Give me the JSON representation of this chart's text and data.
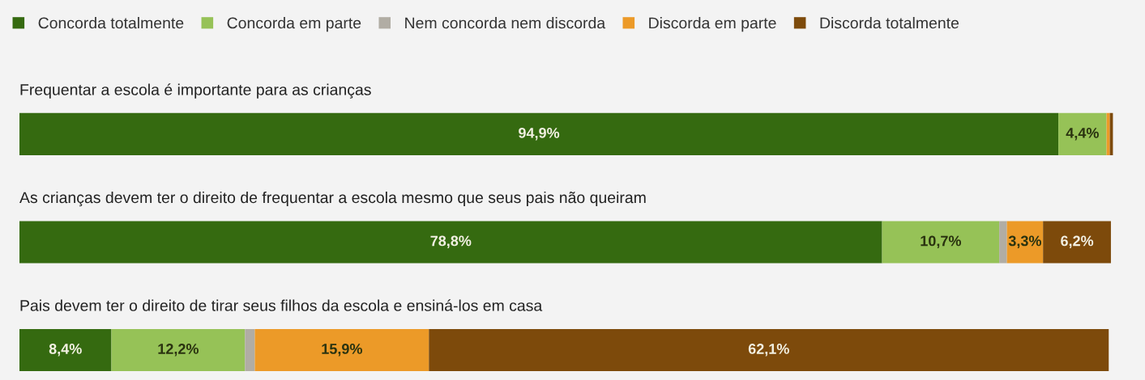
{
  "chart_data": {
    "type": "bar",
    "orientation": "horizontal",
    "stacked": true,
    "tick_labels": "y",
    "legend": "top left",
    "categories": [
      "Frequentar a escola é importante para as crianças",
      "As crianças devem ter o direito de frequentar a escola mesmo que seus pais não queiram",
      "Pais devem ter o direito de tirar seus filhos da escola e ensiná-los em casa"
    ],
    "series": [
      {
        "name": "Concorda totalmente",
        "color": "#356a10",
        "values": [
          94.9,
          78.8,
          8.4
        ],
        "value_labels": [
          "94,9%",
          "78,8%",
          "8,4%"
        ]
      },
      {
        "name": "Concorda em parte",
        "color": "#96c257",
        "values": [
          4.4,
          10.7,
          12.2
        ],
        "value_labels": [
          "4,4%",
          "10,7%",
          "12,2%"
        ]
      },
      {
        "name": "Nem concorda nem discorda",
        "color": "#b1ada4",
        "values": [
          null,
          0.7,
          0.9
        ],
        "value_labels": [
          null,
          null,
          null
        ]
      },
      {
        "name": "Discorda em parte",
        "color": "#ec9a28",
        "values": [
          0.3,
          3.3,
          15.9
        ],
        "value_labels": [
          null,
          "3,3%",
          "15,9%"
        ]
      },
      {
        "name": "Discorda totalmente",
        "color": "#7d4a0b",
        "values": [
          0.3,
          6.2,
          62.1
        ],
        "value_labels": [
          null,
          "6,2%",
          "62,1%"
        ]
      }
    ]
  }
}
